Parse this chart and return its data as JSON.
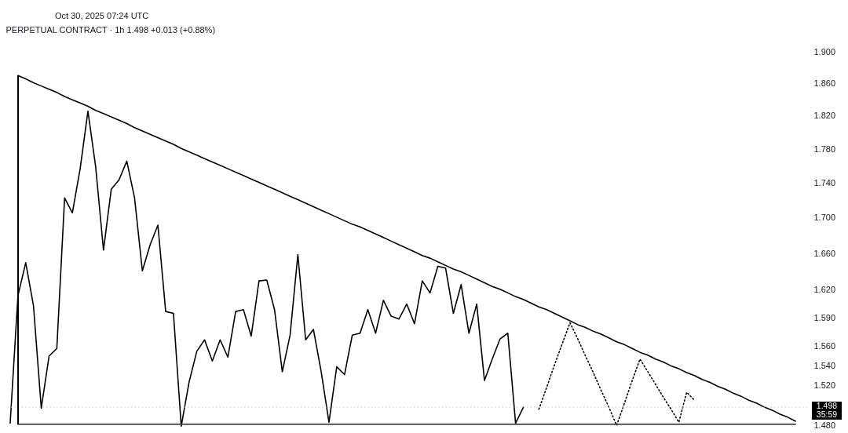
{
  "chart_data": {
    "type": "line",
    "title": "PERPETUAL CONTRACT · 1h  1.498  +0.013 (+0.88%)",
    "annotations": [
      "Oct 30, 2025 07:24 UTC",
      "35:59"
    ],
    "categories": [
      null,
      null,
      null,
      null,
      null,
      null,
      null,
      null,
      null,
      null,
      null,
      null,
      null,
      null,
      null,
      null,
      null,
      null,
      null,
      null,
      null,
      null,
      null,
      null,
      null,
      null,
      null,
      null,
      null,
      null,
      null,
      null,
      null,
      null,
      null,
      null,
      null,
      null,
      null,
      null,
      null,
      null,
      null,
      null,
      null,
      null,
      null,
      null,
      null,
      null,
      null,
      null,
      null,
      null,
      null,
      null,
      null,
      null,
      null,
      null,
      null,
      null,
      null,
      null,
      null,
      null,
      null,
      null,
      null,
      null,
      null,
      null,
      null,
      null,
      null,
      null,
      null,
      null,
      null,
      null,
      null,
      null,
      null,
      null,
      null,
      null,
      null,
      null,
      null,
      null,
      null,
      null,
      null,
      null,
      null,
      null,
      null,
      null,
      null,
      null,
      null,
      null,
      null
    ],
    "ylim": [
      1.477,
      1.9
    ],
    "log": true,
    "tick_labels": "y",
    "yticks": [
      {
        "value": 1.48,
        "label": "1.480"
      },
      {
        "value": 1.52,
        "label": "1.520"
      },
      {
        "value": 1.54,
        "label": "1.540"
      },
      {
        "value": 1.56,
        "label": "1.560"
      },
      {
        "value": 1.59,
        "label": "1.590"
      },
      {
        "value": 1.62,
        "label": "1.620"
      },
      {
        "value": 1.66,
        "label": "1.660"
      },
      {
        "value": 1.7,
        "label": "1.700"
      },
      {
        "value": 1.74,
        "label": "1.740"
      },
      {
        "value": 1.78,
        "label": "1.780"
      },
      {
        "value": 1.82,
        "label": "1.820"
      },
      {
        "value": 1.86,
        "label": "1.860"
      },
      {
        "value": 1.9,
        "label": "1.900"
      }
    ],
    "ref_lines": [
      {
        "axis": "y",
        "value": 1.498,
        "label": "1.498",
        "color": "#c8c8c8",
        "line_style": "dotted"
      }
    ],
    "series": [
      {
        "color": "#000000",
        "line_style": "solid",
        "values": [
          1.482,
          1.614,
          1.65,
          1.603,
          1.497,
          1.55,
          1.558,
          1.723,
          1.706,
          1.757,
          1.826,
          1.759,
          1.664,
          1.733,
          1.744,
          1.766,
          1.723,
          1.641,
          1.67,
          1.692,
          1.597,
          1.595,
          1.479,
          1.523,
          1.555,
          1.567,
          1.545,
          1.567,
          1.549,
          1.597,
          1.599,
          1.571,
          1.63,
          1.631,
          1.599,
          1.534,
          1.572,
          1.659,
          1.567,
          1.578,
          1.534,
          1.483,
          1.539,
          1.531,
          1.572,
          1.574,
          1.599,
          1.574,
          1.609,
          1.592,
          1.589,
          1.605,
          1.584,
          1.63,
          1.617,
          1.646,
          1.644,
          1.595,
          1.626,
          1.574,
          1.605,
          1.525,
          1.547,
          1.568,
          1.574,
          1.482,
          1.498,
          null,
          null,
          null,
          null,
          null,
          null,
          null,
          null,
          null,
          null,
          null,
          null,
          null,
          null,
          null,
          null,
          null,
          null,
          null,
          null,
          null,
          null,
          null,
          null,
          null,
          null,
          null,
          null,
          null,
          null,
          null,
          null,
          null,
          null,
          null,
          null
        ]
      },
      {
        "color": "#000000",
        "line_style": "dotted",
        "values": [
          null,
          null,
          null,
          null,
          null,
          null,
          null,
          null,
          null,
          null,
          null,
          null,
          null,
          null,
          null,
          null,
          null,
          null,
          null,
          null,
          null,
          null,
          null,
          null,
          null,
          null,
          null,
          null,
          null,
          null,
          null,
          null,
          null,
          null,
          null,
          null,
          null,
          null,
          null,
          null,
          null,
          null,
          null,
          null,
          null,
          null,
          null,
          null,
          null,
          null,
          null,
          null,
          null,
          null,
          null,
          null,
          null,
          null,
          null,
          null,
          null,
          null,
          null,
          null,
          null,
          null,
          null,
          null,
          1.496,
          1.518,
          1.541,
          1.563,
          1.585,
          1.568,
          1.55,
          1.533,
          1.515,
          1.498,
          1.48,
          1.502,
          1.525,
          1.547,
          1.534,
          1.521,
          1.508,
          1.496,
          1.483,
          1.513,
          1.505,
          null,
          null,
          null,
          null,
          null,
          null,
          null,
          null,
          null,
          null,
          null,
          null,
          null,
          null
        ]
      },
      {
        "color": "#000000",
        "line_style": "solid",
        "values": [
          null,
          1.87,
          1.866,
          1.861,
          1.857,
          1.853,
          1.849,
          1.844,
          1.84,
          1.836,
          1.832,
          1.827,
          1.823,
          1.819,
          1.815,
          1.811,
          1.806,
          1.802,
          1.798,
          1.794,
          1.79,
          1.786,
          1.781,
          1.777,
          1.773,
          1.769,
          1.765,
          1.761,
          1.757,
          1.753,
          1.749,
          1.745,
          1.741,
          1.737,
          1.733,
          1.729,
          1.725,
          1.721,
          1.717,
          1.713,
          1.709,
          1.705,
          1.701,
          1.697,
          1.693,
          1.69,
          1.686,
          1.682,
          1.678,
          1.674,
          1.67,
          1.666,
          1.662,
          1.658,
          1.655,
          1.651,
          1.647,
          1.643,
          1.64,
          1.636,
          1.632,
          1.628,
          1.624,
          1.621,
          1.617,
          1.613,
          1.61,
          1.606,
          1.602,
          1.599,
          1.595,
          1.591,
          1.587,
          1.583,
          1.58,
          1.576,
          1.573,
          1.569,
          1.565,
          1.562,
          1.558,
          1.554,
          1.551,
          1.547,
          1.544,
          1.54,
          1.537,
          1.533,
          1.53,
          1.526,
          1.523,
          1.519,
          1.516,
          1.512,
          1.509,
          1.505,
          1.502,
          1.498,
          1.495,
          1.491,
          1.488,
          1.484,
          null
        ]
      },
      {
        "color": "#444444",
        "line_style": "solid",
        "values": [
          null,
          1.481,
          1.481,
          1.481,
          1.481,
          1.481,
          1.481,
          1.481,
          1.481,
          1.481,
          1.481,
          1.481,
          1.481,
          1.481,
          1.481,
          1.481,
          1.481,
          1.481,
          1.481,
          1.481,
          1.481,
          1.481,
          1.481,
          1.481,
          1.481,
          1.481,
          1.481,
          1.481,
          1.481,
          1.481,
          1.481,
          1.481,
          1.481,
          1.481,
          1.481,
          1.481,
          1.481,
          1.481,
          1.481,
          1.481,
          1.481,
          1.481,
          1.481,
          1.481,
          1.481,
          1.481,
          1.481,
          1.481,
          1.481,
          1.481,
          1.481,
          1.481,
          1.481,
          1.481,
          1.481,
          1.481,
          1.481,
          1.481,
          1.481,
          1.481,
          1.481,
          1.481,
          1.481,
          1.481,
          1.481,
          1.481,
          1.481,
          1.481,
          1.481,
          1.481,
          1.481,
          1.481,
          1.481,
          1.481,
          1.481,
          1.481,
          1.481,
          1.481,
          1.481,
          1.481,
          1.481,
          1.481,
          1.481,
          1.481,
          1.481,
          1.481,
          1.481,
          1.481,
          1.481,
          1.481,
          1.481,
          1.481,
          1.481,
          1.481,
          1.481,
          1.481,
          1.481,
          1.481,
          1.481,
          1.481,
          1.481,
          1.481,
          null
        ]
      }
    ]
  }
}
